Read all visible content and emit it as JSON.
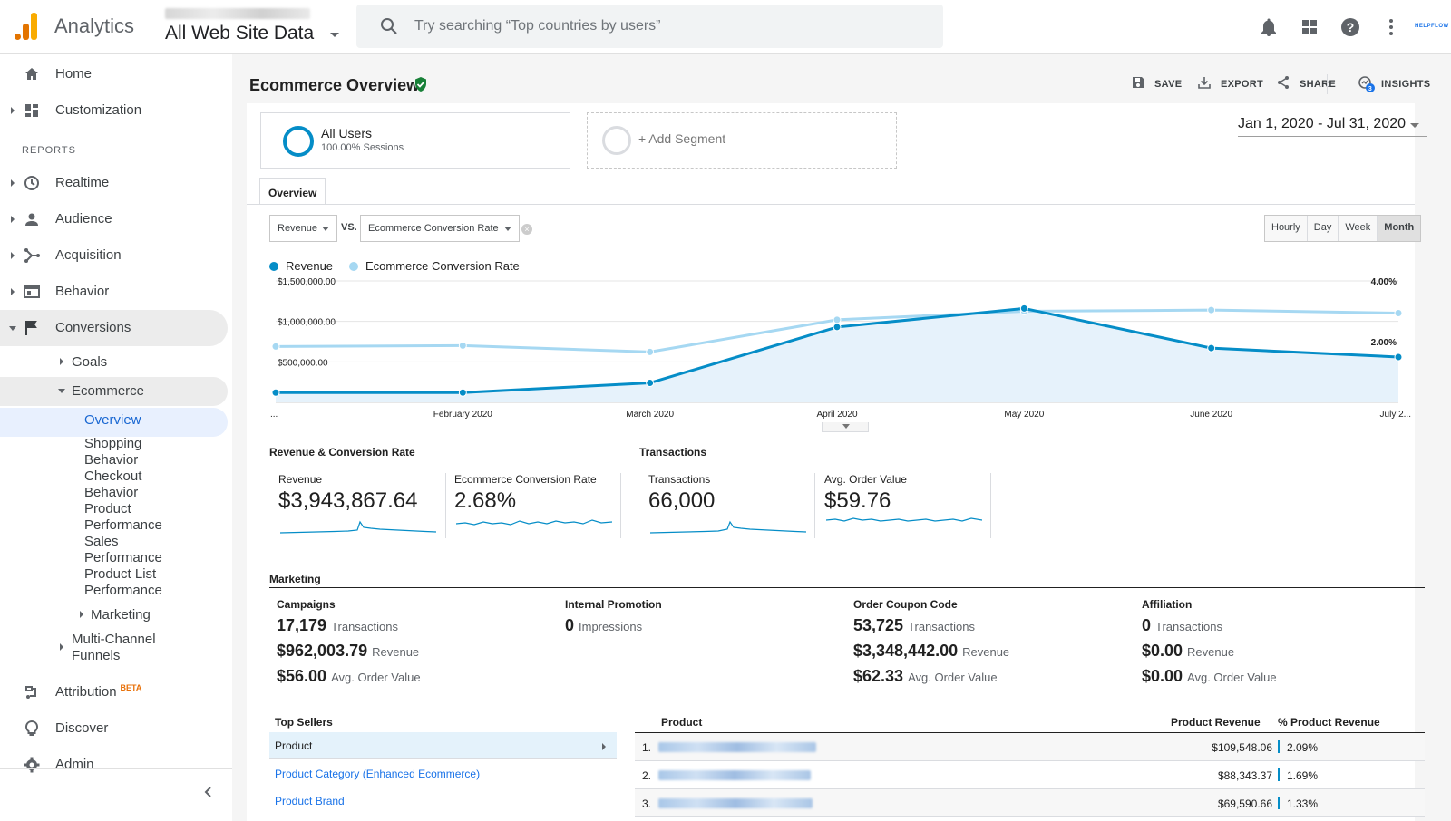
{
  "header": {
    "app_name": "Analytics",
    "account_blurred": "Save Lands > Savelands.org",
    "view_name": "All Web Site Data",
    "search_placeholder": "Try searching “Top countries by users”",
    "brand": "HELPFLOW",
    "icons": [
      "bell-icon",
      "apps-grid-icon",
      "help-icon",
      "more-vert-icon"
    ]
  },
  "sidebar": {
    "home": "Home",
    "customization": "Customization",
    "reports_label": "REPORTS",
    "realtime": "Realtime",
    "audience": "Audience",
    "acquisition": "Acquisition",
    "behavior": "Behavior",
    "conversions": "Conversions",
    "goals": "Goals",
    "ecommerce": "Ecommerce",
    "overview": "Overview",
    "shopping_behavior_1": "Shopping",
    "shopping_behavior_2": "Behavior",
    "checkout_behavior_1": "Checkout",
    "checkout_behavior_2": "Behavior",
    "product_performance_1": "Product",
    "product_performance_2": "Performance",
    "sales_performance_1": "Sales",
    "sales_performance_2": "Performance",
    "product_list_1": "Product List",
    "product_list_2": "Performance",
    "marketing": "Marketing",
    "multichannel_1": "Multi-Channel",
    "multichannel_2": "Funnels",
    "attribution": "Attribution",
    "attribution_badge": "BETA",
    "discover": "Discover",
    "admin": "Admin"
  },
  "page": {
    "title": "Ecommerce Overview",
    "actions": {
      "save": "SAVE",
      "export": "EXPORT",
      "share": "SHARE",
      "insights": "INSIGHTS",
      "insights_badge": "3"
    },
    "segment": {
      "name": "All Users",
      "detail": "100.00% Sessions",
      "add": "+ Add Segment"
    },
    "date_range": "Jan 1, 2020 - Jul 31, 2020",
    "tab": "Overview",
    "metric_select_1": "Revenue",
    "vs": "VS.",
    "metric_select_2": "Ecommerce Conversion Rate",
    "granularity": [
      "Hourly",
      "Day",
      "Week",
      "Month"
    ],
    "granularity_selected": "Month"
  },
  "chart_data": {
    "type": "line",
    "categories": [
      "...",
      "February 2020",
      "March 2020",
      "April 2020",
      "May 2020",
      "June 2020",
      "July 2..."
    ],
    "y_left_ticks": [
      "$1,500,000.00",
      "$1,000,000.00",
      "$500,000.00"
    ],
    "y_right_ticks": [
      "4.00%",
      "2.00%"
    ],
    "y_left_range": [
      0,
      1500000
    ],
    "y_right_range": [
      0,
      4
    ],
    "series": [
      {
        "name": "Revenue",
        "color": "#058dc7",
        "values": [
          120000,
          120000,
          240000,
          930000,
          1160000,
          670000,
          560000
        ]
      },
      {
        "name": "Ecommerce Conversion Rate",
        "color": "#a6d8f2",
        "values": [
          1.84,
          1.87,
          1.66,
          2.72,
          3.0,
          3.04,
          2.94
        ]
      }
    ]
  },
  "rev_conv": {
    "section": "Revenue & Conversion Rate",
    "revenue_label": "Revenue",
    "revenue_value": "$3,943,867.64",
    "conv_label": "Ecommerce Conversion Rate",
    "conv_value": "2.68%"
  },
  "transactions": {
    "section": "Transactions",
    "tx_label": "Transactions",
    "tx_value": "66,000",
    "aov_label": "Avg. Order Value",
    "aov_value": "$59.76"
  },
  "marketing": {
    "section": "Marketing",
    "columns": [
      {
        "title": "Campaigns",
        "rows": [
          [
            "17,179",
            "Transactions"
          ],
          [
            "$962,003.79",
            "Revenue"
          ],
          [
            "$56.00",
            "Avg. Order Value"
          ]
        ]
      },
      {
        "title": "Internal Promotion",
        "rows": [
          [
            "0",
            "Impressions"
          ]
        ]
      },
      {
        "title": "Order Coupon Code",
        "rows": [
          [
            "53,725",
            "Transactions"
          ],
          [
            "$3,348,442.00",
            "Revenue"
          ],
          [
            "$62.33",
            "Avg. Order Value"
          ]
        ]
      },
      {
        "title": "Affiliation",
        "rows": [
          [
            "0",
            "Transactions"
          ],
          [
            "$0.00",
            "Revenue"
          ],
          [
            "$0.00",
            "Avg. Order Value"
          ]
        ]
      }
    ]
  },
  "top_sellers": {
    "title": "Top Sellers",
    "items": [
      "Product",
      "Product Category (Enhanced Ecommerce)",
      "Product Brand"
    ]
  },
  "product_table": {
    "headers": {
      "product": "Product",
      "revenue": "Product Revenue",
      "pct": "% Product Revenue"
    },
    "rows": [
      {
        "num": "1.",
        "revenue": "$109,548.06",
        "pct": "2.09%"
      },
      {
        "num": "2.",
        "revenue": "$88,343.37",
        "pct": "1.69%"
      },
      {
        "num": "3.",
        "revenue": "$69,590.66",
        "pct": "1.33%"
      }
    ]
  }
}
